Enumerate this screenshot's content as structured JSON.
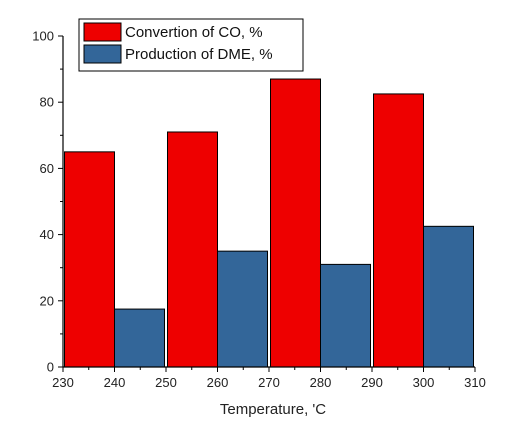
{
  "chart_data": {
    "type": "bar",
    "title": "",
    "xlabel": "Temperature, 'C",
    "ylabel": "",
    "x": [
      240,
      260,
      280,
      300
    ],
    "xlim": [
      230,
      310
    ],
    "ylim": [
      0,
      100
    ],
    "xticks": [
      "230",
      "240",
      "250",
      "260",
      "270",
      "280",
      "290",
      "300",
      "310"
    ],
    "yticks": [
      "0",
      "20",
      "40",
      "60",
      "80",
      "100"
    ],
    "grid": false,
    "legend_position": "top-left",
    "series": [
      {
        "name": "Convertion of CO, %",
        "values": [
          65,
          71,
          87,
          82.5
        ],
        "color": "#ee0000"
      },
      {
        "name": "Production of DME, %",
        "values": [
          17.5,
          35,
          31,
          42.5
        ],
        "color": "#336699"
      }
    ]
  }
}
